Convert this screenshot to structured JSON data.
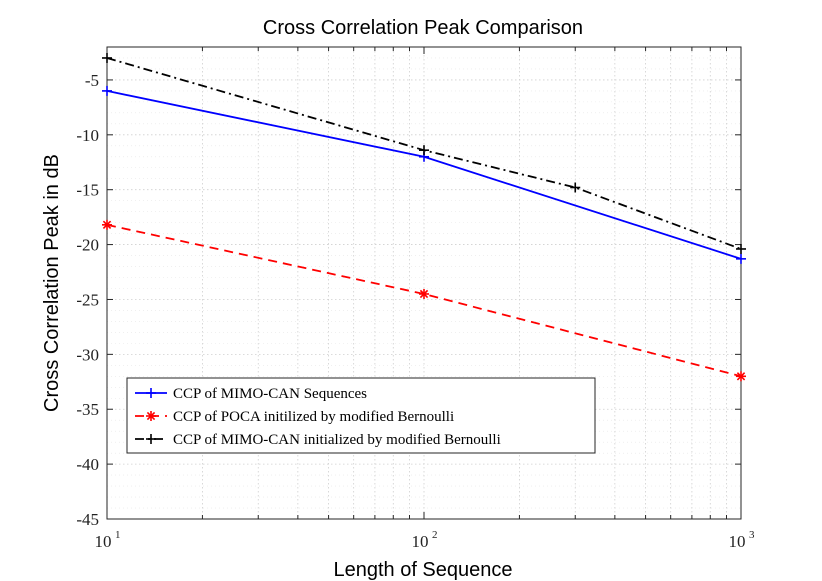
{
  "chart_data": {
    "type": "line",
    "title": "Cross Correlation Peak Comparison",
    "xlabel": "Length of Sequence",
    "ylabel": "Cross Correlation Peak in dB",
    "xscale": "log",
    "xlim": [
      10,
      1000
    ],
    "ylim": [
      -45,
      -2
    ],
    "yticks": [
      -5,
      -10,
      -15,
      -20,
      -25,
      -30,
      -35,
      -40,
      -45
    ],
    "xticks": [
      {
        "value": 10,
        "base": "10",
        "exp": "1"
      },
      {
        "value": 100,
        "base": "10",
        "exp": "2"
      },
      {
        "value": 1000,
        "base": "10",
        "exp": "3"
      }
    ],
    "grid": true,
    "legend_position": "lower-left",
    "series": [
      {
        "name": "CCP of MIMO-CAN Sequences",
        "color": "#0000ff",
        "line_style": "solid",
        "marker": "plus",
        "x": [
          10,
          100,
          1000
        ],
        "y": [
          -6.0,
          -12.0,
          -21.3
        ]
      },
      {
        "name": "CCP of POCA initilized by modified Bernoulli",
        "color": "#ff0000",
        "line_style": "dashed",
        "marker": "asterisk",
        "x": [
          10,
          100,
          1000
        ],
        "y": [
          -18.2,
          -24.5,
          -32.0
        ]
      },
      {
        "name": "CCP of MIMO-CAN initialized by modified Bernoulli",
        "color": "#000000",
        "line_style": "dashdot",
        "marker": "plus",
        "x": [
          10,
          100,
          300,
          1000
        ],
        "y": [
          -3.0,
          -11.4,
          -14.8,
          -20.4
        ]
      }
    ]
  }
}
